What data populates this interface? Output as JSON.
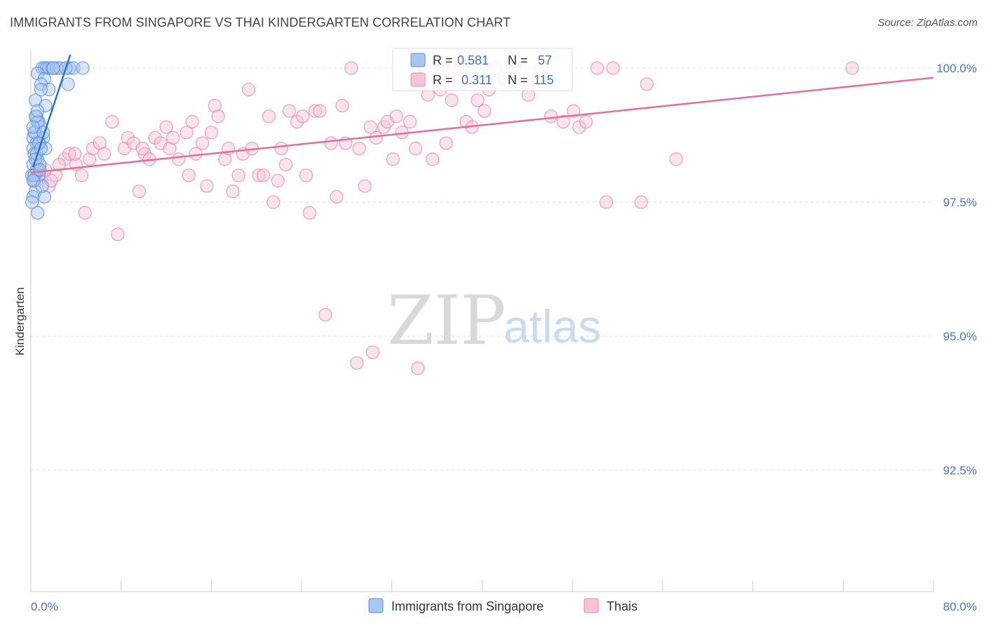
{
  "title": "IMMIGRANTS FROM SINGAPORE VS THAI KINDERGARTEN CORRELATION CHART",
  "source": "Source: ZipAtlas.com",
  "watermark": {
    "zip": "ZIP",
    "atlas": "atlas"
  },
  "colors": {
    "blue": "#5b8fe0",
    "blue_fill": "#a9c6f0",
    "blue_line": "#2d6fd3",
    "pink": "#e88aab",
    "pink_fill": "#f6c4d5",
    "pink_line": "#e07098",
    "grid": "#dddddd",
    "axis_text": "#4a74c9"
  },
  "legend_stats": [
    {
      "r_label": "R =",
      "r_value": "0.581",
      "n_label": "N =",
      "n_value": "57"
    },
    {
      "r_label": "R =",
      "r_value": "0.311",
      "n_label": "N =",
      "n_value": "115"
    }
  ],
  "chart_data": {
    "type": "scatter",
    "title": "IMMIGRANTS FROM SINGAPORE VS THAI KINDERGARTEN CORRELATION CHART",
    "xlabel": "",
    "ylabel": "Kindergarten",
    "xlim": [
      0,
      80
    ],
    "ylim": [
      90.25,
      100.3
    ],
    "x_tick_labels": {
      "left": "0.0%",
      "right": "80.0%"
    },
    "y_ticks": [
      {
        "value": 100.0,
        "label": "100.0%"
      },
      {
        "value": 97.5,
        "label": "97.5%"
      },
      {
        "value": 95.0,
        "label": "95.0%"
      },
      {
        "value": 92.5,
        "label": "92.5%"
      }
    ],
    "legend": [
      "Immigrants from Singapore",
      "Thais"
    ],
    "legend_position": "bottom-center",
    "series": [
      {
        "name": "Immigrants from Singapore",
        "color": "#5b8fe0",
        "trend": {
          "x": [
            0.2,
            3.5
          ],
          "y": [
            98.15,
            100.25
          ]
        },
        "points": [
          [
            1.0,
            100.0
          ],
          [
            1.2,
            100.0
          ],
          [
            1.4,
            100.0
          ],
          [
            1.6,
            100.0
          ],
          [
            1.9,
            100.0
          ],
          [
            2.3,
            100.0
          ],
          [
            2.6,
            100.0
          ],
          [
            3.4,
            100.0
          ],
          [
            3.8,
            100.0
          ],
          [
            4.6,
            100.0
          ],
          [
            0.6,
            99.9
          ],
          [
            1.2,
            99.8
          ],
          [
            0.9,
            99.7
          ],
          [
            1.6,
            99.6
          ],
          [
            0.4,
            99.4
          ],
          [
            1.3,
            99.3
          ],
          [
            0.5,
            99.1
          ],
          [
            0.7,
            99.0
          ],
          [
            0.4,
            98.8
          ],
          [
            0.9,
            98.9
          ],
          [
            0.2,
            98.7
          ],
          [
            0.5,
            98.6
          ],
          [
            0.8,
            98.6
          ],
          [
            1.1,
            98.7
          ],
          [
            1.3,
            98.5
          ],
          [
            0.2,
            98.5
          ],
          [
            0.3,
            98.4
          ],
          [
            0.6,
            98.3
          ],
          [
            0.2,
            98.2
          ],
          [
            0.5,
            98.1
          ],
          [
            0.1,
            98.0
          ],
          [
            0.3,
            97.9
          ],
          [
            0.7,
            98.0
          ],
          [
            0.4,
            97.7
          ],
          [
            0.2,
            97.6
          ],
          [
            0.6,
            97.3
          ],
          [
            1.2,
            97.6
          ],
          [
            0.1,
            97.5
          ],
          [
            0.8,
            98.2
          ],
          [
            0.3,
            98.8
          ],
          [
            0.6,
            99.0
          ],
          [
            0.4,
            99.1
          ],
          [
            0.9,
            99.6
          ],
          [
            1.1,
            98.8
          ],
          [
            0.2,
            98.9
          ],
          [
            0.5,
            98.4
          ],
          [
            0.7,
            98.6
          ],
          [
            0.3,
            98.0
          ],
          [
            0.4,
            98.3
          ],
          [
            0.2,
            97.9
          ],
          [
            0.8,
            98.1
          ],
          [
            1.0,
            97.8
          ],
          [
            3.3,
            99.7
          ],
          [
            3.1,
            100.0
          ],
          [
            2.0,
            100.0
          ],
          [
            0.6,
            99.2
          ],
          [
            0.9,
            98.5
          ]
        ]
      },
      {
        "name": "Thais",
        "color": "#e88aab",
        "trend": {
          "x": [
            0.0,
            80.0
          ],
          "y": [
            98.05,
            99.82
          ]
        },
        "points": [
          [
            0.3,
            98.0
          ],
          [
            0.5,
            97.9
          ],
          [
            0.8,
            98.1
          ],
          [
            1.0,
            98.0
          ],
          [
            1.3,
            98.1
          ],
          [
            1.6,
            97.8
          ],
          [
            2.2,
            98.0
          ],
          [
            3.0,
            98.3
          ],
          [
            3.4,
            98.4
          ],
          [
            4.0,
            98.2
          ],
          [
            5.2,
            98.3
          ],
          [
            4.8,
            97.3
          ],
          [
            3.9,
            98.4
          ],
          [
            4.5,
            98.0
          ],
          [
            5.5,
            98.5
          ],
          [
            6.1,
            98.6
          ],
          [
            6.5,
            98.4
          ],
          [
            7.2,
            99.0
          ],
          [
            7.7,
            96.9
          ],
          [
            8.3,
            98.5
          ],
          [
            8.6,
            98.7
          ],
          [
            9.1,
            98.6
          ],
          [
            9.6,
            97.7
          ],
          [
            10.1,
            98.4
          ],
          [
            10.5,
            98.3
          ],
          [
            11.0,
            98.7
          ],
          [
            11.5,
            98.6
          ],
          [
            12.0,
            98.9
          ],
          [
            12.3,
            98.5
          ],
          [
            12.6,
            98.7
          ],
          [
            13.1,
            98.3
          ],
          [
            13.8,
            98.8
          ],
          [
            14.3,
            99.0
          ],
          [
            14.0,
            98.0
          ],
          [
            14.6,
            98.4
          ],
          [
            15.2,
            98.6
          ],
          [
            15.6,
            97.8
          ],
          [
            16.0,
            98.8
          ],
          [
            16.3,
            99.3
          ],
          [
            16.6,
            99.1
          ],
          [
            17.2,
            98.3
          ],
          [
            17.5,
            98.5
          ],
          [
            17.9,
            97.7
          ],
          [
            18.4,
            98.0
          ],
          [
            18.8,
            98.4
          ],
          [
            19.3,
            99.6
          ],
          [
            19.6,
            98.5
          ],
          [
            20.2,
            98.0
          ],
          [
            20.6,
            98.0
          ],
          [
            21.1,
            99.1
          ],
          [
            21.5,
            97.5
          ],
          [
            21.9,
            97.9
          ],
          [
            22.2,
            98.5
          ],
          [
            22.6,
            98.2
          ],
          [
            22.9,
            99.2
          ],
          [
            23.6,
            99.0
          ],
          [
            24.1,
            99.1
          ],
          [
            24.4,
            98.0
          ],
          [
            24.7,
            97.3
          ],
          [
            25.2,
            99.2
          ],
          [
            25.6,
            99.2
          ],
          [
            26.1,
            95.4
          ],
          [
            26.6,
            98.6
          ],
          [
            27.1,
            97.6
          ],
          [
            27.6,
            99.3
          ],
          [
            27.9,
            98.6
          ],
          [
            28.4,
            100.0
          ],
          [
            29.1,
            98.5
          ],
          [
            29.6,
            97.8
          ],
          [
            30.1,
            98.9
          ],
          [
            30.6,
            98.7
          ],
          [
            31.3,
            98.9
          ],
          [
            31.6,
            99.0
          ],
          [
            32.1,
            98.3
          ],
          [
            32.4,
            99.1
          ],
          [
            32.9,
            98.8
          ],
          [
            33.6,
            99.0
          ],
          [
            34.1,
            98.5
          ],
          [
            34.9,
            100.0
          ],
          [
            35.2,
            99.5
          ],
          [
            35.6,
            98.3
          ],
          [
            36.3,
            99.6
          ],
          [
            36.8,
            98.6
          ],
          [
            37.3,
            99.4
          ],
          [
            37.6,
            100.0
          ],
          [
            38.1,
            99.7
          ],
          [
            38.6,
            99.0
          ],
          [
            39.1,
            98.9
          ],
          [
            39.6,
            99.4
          ],
          [
            40.2,
            99.2
          ],
          [
            40.6,
            99.6
          ],
          [
            41.2,
            100.0
          ],
          [
            42.0,
            99.8
          ],
          [
            43.2,
            99.7
          ],
          [
            44.1,
            99.5
          ],
          [
            45.2,
            100.0
          ],
          [
            46.1,
            99.1
          ],
          [
            47.2,
            99.0
          ],
          [
            48.1,
            99.2
          ],
          [
            48.6,
            98.9
          ],
          [
            49.2,
            99.0
          ],
          [
            50.2,
            100.0
          ],
          [
            51.6,
            100.0
          ],
          [
            51.0,
            97.5
          ],
          [
            54.1,
            97.5
          ],
          [
            54.6,
            99.7
          ],
          [
            57.2,
            98.3
          ],
          [
            72.8,
            100.0
          ],
          [
            28.9,
            94.5
          ],
          [
            30.3,
            94.7
          ],
          [
            34.3,
            94.4
          ],
          [
            1.8,
            97.9
          ],
          [
            2.5,
            98.2
          ],
          [
            0.6,
            98.1
          ],
          [
            9.9,
            98.5
          ]
        ]
      }
    ]
  }
}
